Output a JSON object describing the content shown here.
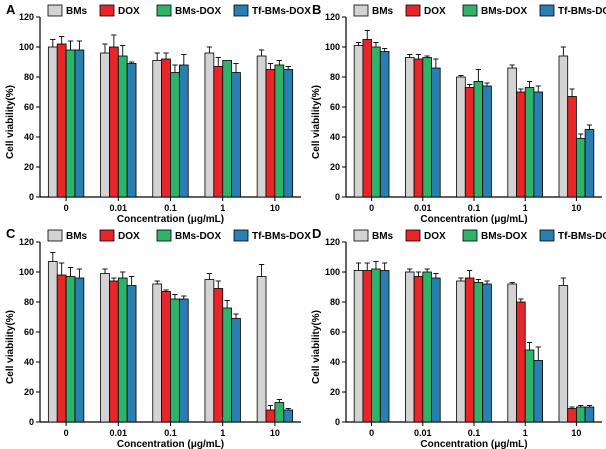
{
  "figure": {
    "colors": {
      "BMs": "#d3d3d3",
      "DOX": "#e8262a",
      "BMs-DOX": "#2fb36b",
      "Tf-BMs-DOX": "#2a7fb0"
    }
  },
  "chart_data": [
    {
      "type": "bar",
      "panel": "A",
      "categories": [
        "0",
        "0.01",
        "0.1",
        "1",
        "10"
      ],
      "xlabel": "Concentration (μg/mL)",
      "ylabel": "Cell viability(%)",
      "ylim": [
        0,
        120
      ],
      "yticks": [
        "0",
        "20",
        "40",
        "60",
        "80",
        "100",
        "120"
      ],
      "legend": "top",
      "series": [
        {
          "name": "BMs",
          "values": [
            100,
            96,
            91,
            96,
            94
          ],
          "errors": [
            5,
            6,
            5,
            4,
            4
          ]
        },
        {
          "name": "DOX",
          "values": [
            102,
            100,
            92,
            87,
            85
          ],
          "errors": [
            5,
            8,
            4,
            6,
            4
          ]
        },
        {
          "name": "BMs-DOX",
          "values": [
            98,
            94,
            83,
            91,
            88
          ],
          "errors": [
            6,
            7,
            5,
            0,
            3
          ]
        },
        {
          "name": "Tf-BMs-DOX",
          "values": [
            98,
            89,
            88,
            83,
            85
          ],
          "errors": [
            6,
            1,
            7,
            6,
            2
          ]
        }
      ]
    },
    {
      "type": "bar",
      "panel": "B",
      "categories": [
        "0",
        "0.01",
        "0.1",
        "1",
        "10"
      ],
      "xlabel": "Concentration (μg/mL)",
      "ylabel": "Cell viability(%)",
      "ylim": [
        0,
        120
      ],
      "yticks": [
        "0",
        "20",
        "40",
        "60",
        "80",
        "100",
        "120"
      ],
      "legend": "top",
      "series": [
        {
          "name": "BMs",
          "values": [
            101,
            93,
            80,
            86,
            94
          ],
          "errors": [
            2,
            2,
            1,
            2,
            6
          ]
        },
        {
          "name": "DOX",
          "values": [
            105,
            92,
            73,
            70,
            67
          ],
          "errors": [
            6,
            3,
            2,
            2,
            5
          ]
        },
        {
          "name": "BMs-DOX",
          "values": [
            100,
            93,
            77,
            73,
            39
          ],
          "errors": [
            3,
            1,
            8,
            4,
            3
          ]
        },
        {
          "name": "Tf-BMs-DOX",
          "values": [
            97,
            86,
            74,
            70,
            45
          ],
          "errors": [
            2,
            6,
            2,
            4,
            3
          ]
        }
      ]
    },
    {
      "type": "bar",
      "panel": "C",
      "categories": [
        "0",
        "0.01",
        "0.1",
        "1",
        "10"
      ],
      "xlabel": "Concentration (μg/mL)",
      "ylabel": "Cell viability(%)",
      "ylim": [
        0,
        120
      ],
      "yticks": [
        "0",
        "20",
        "40",
        "60",
        "80",
        "100",
        "120"
      ],
      "legend": "top",
      "series": [
        {
          "name": "BMs",
          "values": [
            107,
            99,
            92,
            95,
            97
          ],
          "errors": [
            6,
            3,
            2,
            4,
            8
          ]
        },
        {
          "name": "DOX",
          "values": [
            98,
            94,
            87,
            89,
            8
          ],
          "errors": [
            8,
            2,
            1,
            5,
            3
          ]
        },
        {
          "name": "BMs-DOX",
          "values": [
            97,
            96,
            82,
            76,
            13
          ],
          "errors": [
            6,
            4,
            3,
            5,
            2
          ]
        },
        {
          "name": "Tf-BMs-DOX",
          "values": [
            96,
            91,
            82,
            69,
            8
          ],
          "errors": [
            6,
            6,
            2,
            3,
            1
          ]
        }
      ]
    },
    {
      "type": "bar",
      "panel": "D",
      "categories": [
        "0",
        "0.01",
        "0.1",
        "1",
        "10"
      ],
      "xlabel": "Concentration (μg/mL)",
      "ylabel": "Cell viability(%)",
      "ylim": [
        0,
        120
      ],
      "yticks": [
        "0",
        "20",
        "40",
        "60",
        "80",
        "100",
        "120"
      ],
      "legend": "top",
      "series": [
        {
          "name": "BMs",
          "values": [
            101,
            100,
            94,
            92,
            91
          ],
          "errors": [
            5,
            2,
            2,
            1,
            5
          ]
        },
        {
          "name": "DOX",
          "values": [
            101,
            97,
            96,
            80,
            9
          ],
          "errors": [
            5,
            3,
            5,
            2,
            1
          ]
        },
        {
          "name": "BMs-DOX",
          "values": [
            102,
            100,
            93,
            48,
            10
          ],
          "errors": [
            5,
            2,
            2,
            5,
            1
          ]
        },
        {
          "name": "Tf-BMs-DOX",
          "values": [
            101,
            96,
            92,
            41,
            10
          ],
          "errors": [
            5,
            3,
            2,
            9,
            1
          ]
        }
      ]
    }
  ]
}
